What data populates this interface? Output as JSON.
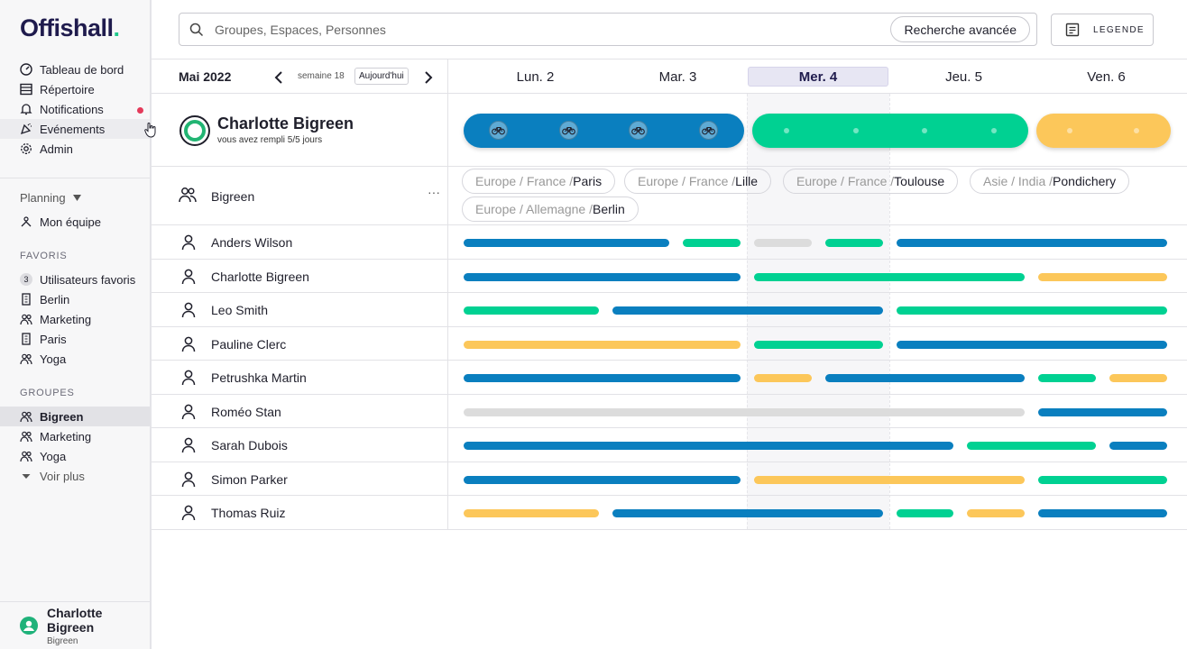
{
  "app": {
    "logo": "Offishall",
    "logo_dot": "."
  },
  "colors": {
    "blue": "#0a7fbf",
    "green": "#00d192",
    "yellow": "#fcc75a",
    "gray": "#dcdcdc",
    "brand": "#1f1b4d"
  },
  "sidebar": {
    "nav": [
      {
        "label": "Tableau de bord",
        "icon": "dashboard-icon"
      },
      {
        "label": "Répertoire",
        "icon": "directory-icon"
      },
      {
        "label": "Notifications",
        "icon": "bell-icon"
      },
      {
        "label": "Evénements",
        "icon": "events-icon"
      },
      {
        "label": "Admin",
        "icon": "gear-icon"
      }
    ],
    "planning_label": "Planning",
    "my_team": "Mon équipe",
    "favorites_title": "FAVORIS",
    "favorites": [
      {
        "label": "Utilisateurs favoris",
        "count": "3"
      },
      {
        "label": "Berlin",
        "icon": "building-icon"
      },
      {
        "label": "Marketing",
        "icon": "users-icon"
      },
      {
        "label": "Paris",
        "icon": "building-icon"
      },
      {
        "label": "Yoga",
        "icon": "users-icon"
      }
    ],
    "groups_title": "GROUPES",
    "groups": [
      {
        "label": "Bigreen"
      },
      {
        "label": "Marketing"
      },
      {
        "label": "Yoga"
      }
    ],
    "see_more": "Voir plus",
    "user": {
      "name": "Charlotte Bigreen",
      "org": "Bigreen"
    }
  },
  "search": {
    "placeholder": "Groupes, Espaces, Personnes",
    "advanced": "Recherche avancée"
  },
  "legend_button": "LEGENDE",
  "calendar": {
    "month": "Mai 2022",
    "week": "semaine 18",
    "today": "Aujourd'hui",
    "prev": "‹",
    "next": "›",
    "days": [
      "Lun. 2",
      "Mar. 3",
      "Mer. 4",
      "Jeu. 5",
      "Ven. 6"
    ],
    "current_day_index": 2
  },
  "profile": {
    "name": "Charlotte Bigreen",
    "subtitle": "vous avez rempli 5/5 jours"
  },
  "group": {
    "name": "Bigreen",
    "more": "···",
    "locations": [
      {
        "path": "Europe / France / ",
        "city": "Paris"
      },
      {
        "path": "Europe / France / ",
        "city": "Lille"
      },
      {
        "path": "Europe / France / ",
        "city": "Toulouse"
      },
      {
        "path": "Asie / India / ",
        "city": "Pondichery"
      },
      {
        "path": "Europe / Allemagne / ",
        "city": "Berlin"
      }
    ]
  },
  "people": [
    {
      "name": "Anders Wilson",
      "bars": [
        {
          "s": 0,
          "e": 1.5,
          "c": "blue"
        },
        {
          "s": 1.5,
          "e": 2,
          "c": "green"
        },
        {
          "s": 2,
          "e": 2.5,
          "c": "gray"
        },
        {
          "s": 2.5,
          "e": 3,
          "c": "green"
        },
        {
          "s": 3,
          "e": 5,
          "c": "blue"
        }
      ]
    },
    {
      "name": "Charlotte Bigreen",
      "bars": [
        {
          "s": 0,
          "e": 2,
          "c": "blue"
        },
        {
          "s": 2,
          "e": 4,
          "c": "green"
        },
        {
          "s": 4,
          "e": 5,
          "c": "yellow"
        }
      ]
    },
    {
      "name": "Leo Smith",
      "bars": [
        {
          "s": 0,
          "e": 1,
          "c": "green"
        },
        {
          "s": 1,
          "e": 3,
          "c": "blue"
        },
        {
          "s": 3,
          "e": 5,
          "c": "green"
        }
      ]
    },
    {
      "name": "Pauline Clerc",
      "bars": [
        {
          "s": 0,
          "e": 2,
          "c": "yellow"
        },
        {
          "s": 2,
          "e": 3,
          "c": "green"
        },
        {
          "s": 3,
          "e": 5,
          "c": "blue"
        }
      ]
    },
    {
      "name": "Petrushka Martin",
      "bars": [
        {
          "s": 0,
          "e": 2,
          "c": "blue"
        },
        {
          "s": 2,
          "e": 2.5,
          "c": "yellow"
        },
        {
          "s": 2.5,
          "e": 4,
          "c": "blue"
        },
        {
          "s": 4,
          "e": 4.5,
          "c": "green"
        },
        {
          "s": 4.5,
          "e": 5,
          "c": "yellow"
        }
      ]
    },
    {
      "name": "Roméo Stan",
      "bars": [
        {
          "s": 0,
          "e": 4,
          "c": "gray"
        },
        {
          "s": 4,
          "e": 5,
          "c": "blue"
        }
      ]
    },
    {
      "name": "Sarah Dubois",
      "bars": [
        {
          "s": 0,
          "e": 3.5,
          "c": "blue"
        },
        {
          "s": 3.5,
          "e": 4.5,
          "c": "green"
        },
        {
          "s": 4.5,
          "e": 5,
          "c": "blue"
        }
      ]
    },
    {
      "name": "Simon Parker",
      "bars": [
        {
          "s": 0,
          "e": 2,
          "c": "blue"
        },
        {
          "s": 2,
          "e": 4,
          "c": "yellow"
        },
        {
          "s": 4,
          "e": 5,
          "c": "green"
        }
      ]
    },
    {
      "name": "Thomas Ruiz",
      "bars": [
        {
          "s": 0,
          "e": 1,
          "c": "yellow"
        },
        {
          "s": 1,
          "e": 3,
          "c": "blue"
        },
        {
          "s": 3,
          "e": 3.5,
          "c": "green"
        },
        {
          "s": 3.5,
          "e": 4,
          "c": "yellow"
        },
        {
          "s": 4,
          "e": 5,
          "c": "blue"
        }
      ]
    }
  ],
  "profile_week": [
    {
      "s": 0,
      "e": 2,
      "c": "blue",
      "marks": [
        "bike",
        "bike",
        "bike",
        "bike"
      ]
    },
    {
      "s": 2,
      "e": 4,
      "c": "green",
      "marks": [
        "dot",
        "dot",
        "dot",
        "dot"
      ]
    },
    {
      "s": 4,
      "e": 5,
      "c": "yellow",
      "marks": [
        "dot",
        "dot"
      ]
    }
  ]
}
